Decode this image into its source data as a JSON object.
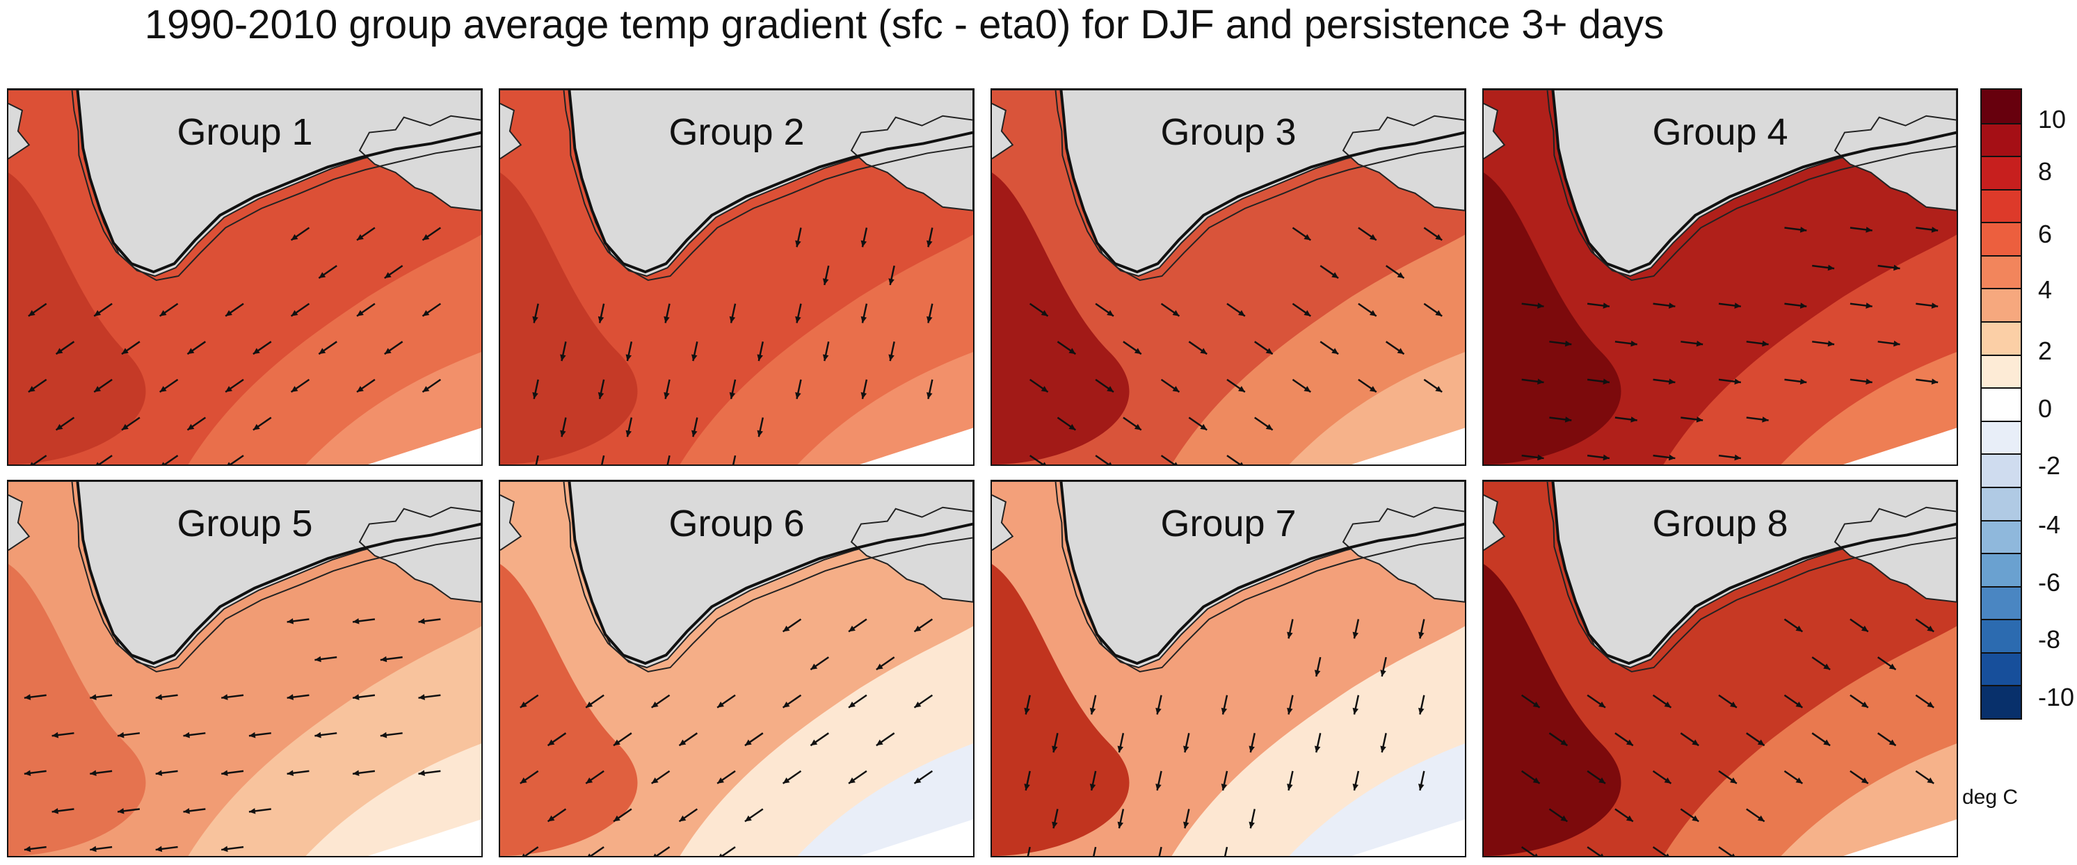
{
  "title": "1990-2010 group average temp gradient (sfc - eta0) for DJF and persistence 3+ days",
  "units_label": "deg C",
  "colorbar": {
    "tick_labels": [
      "10",
      "8",
      "6",
      "4",
      "2",
      "0",
      "-2",
      "-4",
      "-6",
      "-8",
      "-10"
    ],
    "colors": [
      "#67000d",
      "#a50f15",
      "#c71f1e",
      "#dd3a2a",
      "#ec5f3e",
      "#f2855c",
      "#f6a87e",
      "#fbcfa6",
      "#fdebd6",
      "#ffffff",
      "#e8eef8",
      "#cfdcef",
      "#b0cae4",
      "#8fb8dc",
      "#6aa1d0",
      "#4a86c2",
      "#2c6bb0",
      "#174f9b",
      "#08306b"
    ]
  },
  "panels": [
    {
      "label": "Group 1",
      "palette": [
        "#c53a27",
        "#dc5036",
        "#e96f4b",
        "#f2906a"
      ],
      "wind": "sw"
    },
    {
      "label": "Group 2",
      "palette": [
        "#c53a27",
        "#dc5036",
        "#e96f4b",
        "#f2906a"
      ],
      "wind": "s"
    },
    {
      "label": "Group 3",
      "palette": [
        "#a21a17",
        "#d9543a",
        "#ee8a5f",
        "#f6b28a"
      ],
      "wind": "se"
    },
    {
      "label": "Group 4",
      "palette": [
        "#7c0a0c",
        "#b0201a",
        "#d94a32",
        "#ee7e54"
      ],
      "wind": "e"
    },
    {
      "label": "Group 5",
      "palette": [
        "#e5734f",
        "#f19c74",
        "#f8c39d",
        "#fde7d2"
      ],
      "wind": "w"
    },
    {
      "label": "Group 6",
      "palette": [
        "#e0603f",
        "#f5ae87",
        "#fde7d2",
        "#e9eef8"
      ],
      "wind": "sw"
    },
    {
      "label": "Group 7",
      "palette": [
        "#c1341f",
        "#f3a07a",
        "#fde7d2",
        "#e9eef8"
      ],
      "wind": "s"
    },
    {
      "label": "Group 8",
      "palette": [
        "#7c0a0c",
        "#c73924",
        "#e9794f",
        "#f6b28a"
      ],
      "wind": "se"
    }
  ]
}
